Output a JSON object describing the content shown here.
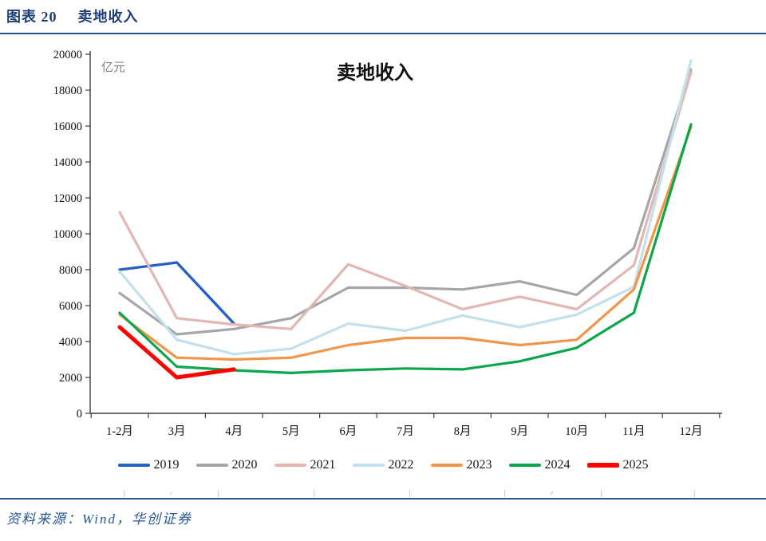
{
  "header": {
    "figure_label": "图表  20",
    "figure_title": "卖地收入"
  },
  "footer": {
    "source": "资料来源：Wind，华创证券"
  },
  "chart_data": {
    "type": "line",
    "title": "卖地收入",
    "unit_label": "亿元",
    "categories": [
      "1-2月",
      "3月",
      "4月",
      "5月",
      "6月",
      "7月",
      "8月",
      "9月",
      "10月",
      "11月",
      "12月"
    ],
    "ylim": [
      0,
      20000
    ],
    "ytick_step": 2000,
    "ytick_labels": [
      "0",
      "2000",
      "4000",
      "6000",
      "8000",
      "10000",
      "12000",
      "14000",
      "16000",
      "18000",
      "20000"
    ],
    "grid": false,
    "legend_position": "bottom",
    "series": [
      {
        "name": "2019",
        "color": "#2362C4",
        "width": 3.4,
        "values": [
          8000,
          8400,
          5000,
          null,
          null,
          null,
          null,
          null,
          null,
          null,
          null
        ]
      },
      {
        "name": "2020",
        "color": "#A6A6A6",
        "width": 3.2,
        "values": [
          6700,
          4400,
          4700,
          5300,
          7000,
          7000,
          6900,
          7350,
          6600,
          9200,
          19150
        ]
      },
      {
        "name": "2021",
        "color": "#E3B6B3",
        "width": 3.2,
        "values": [
          11200,
          5300,
          4950,
          4700,
          8300,
          7100,
          5800,
          6500,
          5800,
          8250,
          19000
        ]
      },
      {
        "name": "2022",
        "color": "#C3E0EB",
        "width": 3.2,
        "values": [
          7900,
          4100,
          3300,
          3600,
          5000,
          4600,
          5450,
          4800,
          5500,
          7050,
          19650
        ]
      },
      {
        "name": "2023",
        "color": "#F0964A",
        "width": 3.2,
        "values": [
          5500,
          3100,
          3000,
          3100,
          3800,
          4200,
          4200,
          3800,
          4100,
          6900,
          15950
        ]
      },
      {
        "name": "2024",
        "color": "#0BA64B",
        "width": 3.2,
        "values": [
          5600,
          2600,
          2400,
          2250,
          2400,
          2500,
          2450,
          2900,
          3650,
          5600,
          16100
        ]
      },
      {
        "name": "2025",
        "color": "#FE0101",
        "width": 5,
        "values": [
          4800,
          2000,
          2450,
          null,
          null,
          null,
          null,
          null,
          null,
          null,
          null
        ]
      }
    ]
  }
}
